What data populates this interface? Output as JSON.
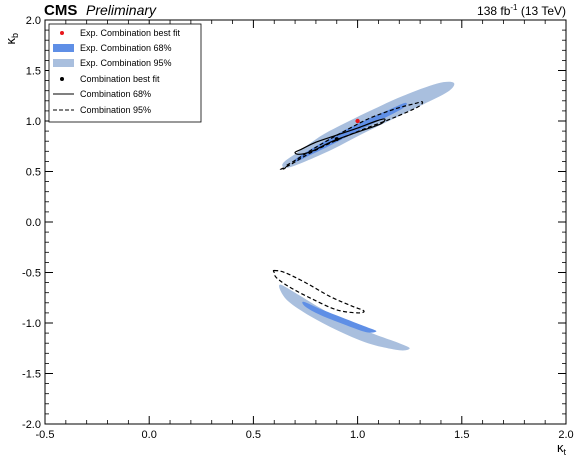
{
  "header": {
    "experiment": "CMS",
    "tag": "Preliminary",
    "lumi_label": "138 fb",
    "lumi_exponent": "-1",
    "energy_label": "(13 TeV)"
  },
  "chart_data": {
    "type": "scatter",
    "xlabel": "κ",
    "xlabel_sub": "t",
    "ylabel": "κ",
    "ylabel_sub": "b",
    "xlim": [
      -0.5,
      2.0
    ],
    "ylim": [
      -2.0,
      2.0
    ],
    "x_ticks": [
      -0.5,
      0.0,
      0.5,
      1.0,
      1.5,
      2.0
    ],
    "x_tick_labels": [
      "-0.5",
      "0.0",
      "0.5",
      "1.0",
      "1.5",
      "2.0"
    ],
    "y_ticks": [
      -2.0,
      -1.5,
      -1.0,
      -0.5,
      0.0,
      0.5,
      1.0,
      1.5,
      2.0
    ],
    "y_tick_labels": [
      "-2.0",
      "-1.5",
      "-1.0",
      "-0.5",
      "0.0",
      "0.5",
      "1.0",
      "1.5",
      "2.0"
    ],
    "grid": false,
    "legend_position": "top-left",
    "legend": [
      {
        "label": "Exp. Combination best fit",
        "style": "red-dot"
      },
      {
        "label": "Exp. Combination 68%",
        "style": "band68"
      },
      {
        "label": "Exp. Combination 95%",
        "style": "band95"
      },
      {
        "label": "Combination best fit",
        "style": "black-dot"
      },
      {
        "label": "Combination 68%",
        "style": "solid"
      },
      {
        "label": "Combination 95%",
        "style": "dashed"
      }
    ],
    "colors": {
      "exp_68": "#5f8fe6",
      "exp_95": "#a9bfde",
      "exp_best_fit": "#e8161b",
      "obs": "#000000"
    },
    "exp_best_fit": {
      "x": 1.0,
      "y": 1.0
    },
    "obs_best_fit": {
      "x": 0.9,
      "y": 0.82
    },
    "regions": [
      {
        "series": "exp_95",
        "points": [
          [
            0.65,
            0.6
          ],
          [
            0.72,
            0.7
          ],
          [
            0.83,
            0.86
          ],
          [
            0.95,
            0.99
          ],
          [
            1.08,
            1.12
          ],
          [
            1.22,
            1.25
          ],
          [
            1.38,
            1.37
          ],
          [
            1.46,
            1.38
          ],
          [
            1.44,
            1.3
          ],
          [
            1.33,
            1.18
          ],
          [
            1.17,
            1.02
          ],
          [
            1.02,
            0.87
          ],
          [
            0.88,
            0.72
          ],
          [
            0.75,
            0.6
          ],
          [
            0.67,
            0.54
          ],
          [
            0.64,
            0.55
          ]
        ]
      },
      {
        "series": "exp_95",
        "points": [
          [
            0.63,
            -0.62
          ],
          [
            0.7,
            -0.7
          ],
          [
            0.82,
            -0.85
          ],
          [
            0.95,
            -1.0
          ],
          [
            1.08,
            -1.11
          ],
          [
            1.2,
            -1.2
          ],
          [
            1.25,
            -1.25
          ],
          [
            1.2,
            -1.27
          ],
          [
            1.05,
            -1.2
          ],
          [
            0.9,
            -1.07
          ],
          [
            0.77,
            -0.93
          ],
          [
            0.67,
            -0.79
          ],
          [
            0.63,
            -0.68
          ]
        ]
      },
      {
        "series": "exp_68",
        "points": [
          [
            0.7,
            0.62
          ],
          [
            0.8,
            0.75
          ],
          [
            0.92,
            0.89
          ],
          [
            1.04,
            1.01
          ],
          [
            1.16,
            1.12
          ],
          [
            1.23,
            1.18
          ],
          [
            1.22,
            1.13
          ],
          [
            1.12,
            1.02
          ],
          [
            1.0,
            0.9
          ],
          [
            0.88,
            0.77
          ],
          [
            0.77,
            0.66
          ],
          [
            0.71,
            0.6
          ]
        ]
      },
      {
        "series": "exp_68",
        "points": [
          [
            0.74,
            -0.79
          ],
          [
            0.82,
            -0.86
          ],
          [
            0.93,
            -0.95
          ],
          [
            1.03,
            -1.03
          ],
          [
            1.09,
            -1.08
          ],
          [
            1.04,
            -1.09
          ],
          [
            0.93,
            -1.01
          ],
          [
            0.82,
            -0.92
          ],
          [
            0.75,
            -0.84
          ]
        ]
      },
      {
        "series": "obs_68",
        "points": [
          [
            0.73,
            0.72
          ],
          [
            0.8,
            0.79
          ],
          [
            0.9,
            0.86
          ],
          [
            1.0,
            0.93
          ],
          [
            1.09,
            1.0
          ],
          [
            1.13,
            1.02
          ],
          [
            1.11,
            0.97
          ],
          [
            1.0,
            0.89
          ],
          [
            0.88,
            0.8
          ],
          [
            0.78,
            0.7
          ],
          [
            0.72,
            0.67
          ],
          [
            0.7,
            0.69
          ]
        ]
      },
      {
        "series": "obs_95",
        "points": [
          [
            0.66,
            0.56
          ],
          [
            0.7,
            0.61
          ],
          [
            0.8,
            0.74
          ],
          [
            0.92,
            0.88
          ],
          [
            1.05,
            1.02
          ],
          [
            1.18,
            1.12
          ],
          [
            1.27,
            1.17
          ],
          [
            1.31,
            1.19
          ],
          [
            1.29,
            1.14
          ],
          [
            1.17,
            1.03
          ],
          [
            1.03,
            0.92
          ],
          [
            0.9,
            0.81
          ],
          [
            0.77,
            0.68
          ],
          [
            0.68,
            0.57
          ],
          [
            0.63,
            0.52
          ],
          [
            0.65,
            0.53
          ]
        ]
      },
      {
        "series": "obs_95",
        "points": [
          [
            0.6,
            -0.48
          ],
          [
            0.65,
            -0.5
          ],
          [
            0.75,
            -0.6
          ],
          [
            0.87,
            -0.74
          ],
          [
            0.97,
            -0.83
          ],
          [
            1.03,
            -0.88
          ],
          [
            1.0,
            -0.9
          ],
          [
            0.9,
            -0.87
          ],
          [
            0.78,
            -0.76
          ],
          [
            0.67,
            -0.64
          ],
          [
            0.61,
            -0.55
          ],
          [
            0.6,
            -0.5
          ]
        ]
      }
    ]
  }
}
